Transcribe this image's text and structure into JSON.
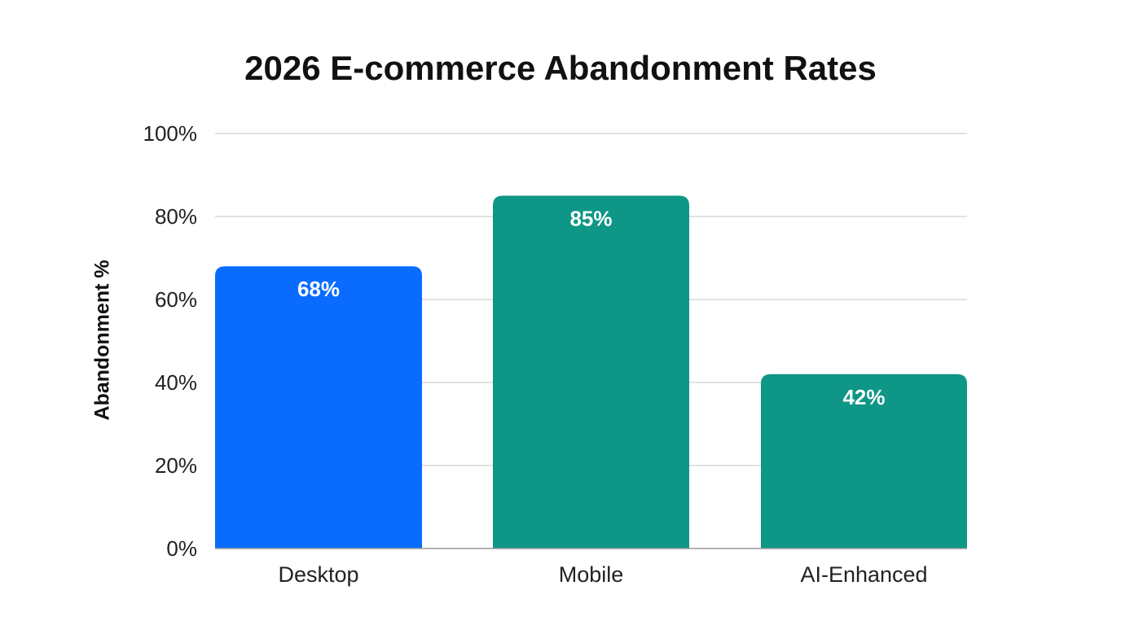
{
  "chart_data": {
    "type": "bar",
    "title": "2026 E-commerce Abandonment Rates",
    "xlabel": "",
    "ylabel": "Abandonment %",
    "ylim": [
      0,
      100
    ],
    "yticks": [
      "0%",
      "20%",
      "40%",
      "60%",
      "80%",
      "100%"
    ],
    "ytick_values": [
      0,
      20,
      40,
      60,
      80,
      100
    ],
    "grid": true,
    "categories": [
      "Desktop",
      "Mobile",
      "AI-Enhanced"
    ],
    "values": [
      68,
      85,
      42
    ],
    "data_labels": [
      "68%",
      "85%",
      "42%"
    ],
    "colors": [
      "#0a6cff",
      "#0e9686",
      "#0e9686"
    ]
  }
}
